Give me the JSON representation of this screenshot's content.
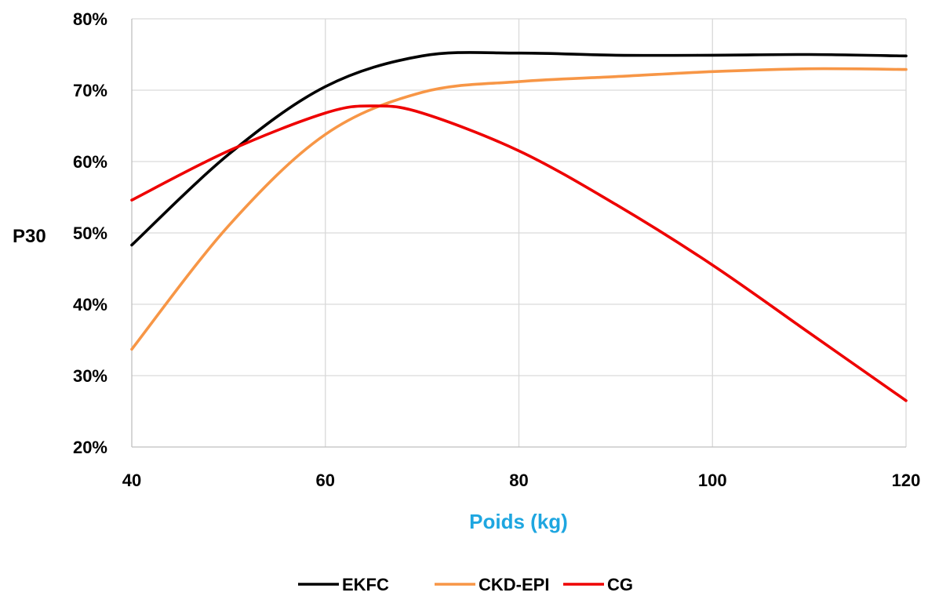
{
  "chart_data": {
    "type": "line",
    "title": "",
    "xlabel": "Poids (kg)",
    "ylabel": "P30",
    "xlim": [
      40,
      120
    ],
    "ylim": [
      20,
      80
    ],
    "x_ticks": [
      40,
      60,
      80,
      100,
      120
    ],
    "y_ticks": [
      20,
      30,
      40,
      50,
      60,
      70,
      80
    ],
    "x_tick_labels": [
      "40",
      "60",
      "80",
      "100",
      "120"
    ],
    "y_tick_labels": [
      "20%",
      "30%",
      "40%",
      "50%",
      "60%",
      "70%",
      "80%"
    ],
    "grid": true,
    "legend_position": "bottom",
    "colors": {
      "xlabel": "#1ea6e0",
      "grid": "#d9d9d9",
      "axis": "#bfbfbf"
    },
    "series": [
      {
        "name": "EKFC",
        "color": "#000000",
        "points": [
          [
            40,
            48.3
          ],
          [
            50,
            61.0
          ],
          [
            60,
            70.5
          ],
          [
            70,
            74.8
          ],
          [
            80,
            75.2
          ],
          [
            90,
            74.9
          ],
          [
            100,
            74.9
          ],
          [
            110,
            75.0
          ],
          [
            120,
            74.8
          ]
        ]
      },
      {
        "name": "CKD-EPI",
        "color": "#f79646",
        "points": [
          [
            40,
            33.7
          ],
          [
            50,
            51.0
          ],
          [
            60,
            63.8
          ],
          [
            70,
            69.7
          ],
          [
            80,
            71.2
          ],
          [
            90,
            71.9
          ],
          [
            100,
            72.6
          ],
          [
            110,
            73.0
          ],
          [
            120,
            72.9
          ]
        ]
      },
      {
        "name": "CG",
        "color": "#ee0000",
        "points": [
          [
            40,
            54.6
          ],
          [
            50,
            61.5
          ],
          [
            60,
            66.8
          ],
          [
            65,
            67.8
          ],
          [
            70,
            66.8
          ],
          [
            80,
            61.5
          ],
          [
            90,
            54.0
          ],
          [
            100,
            45.5
          ],
          [
            110,
            36.0
          ],
          [
            120,
            26.5
          ]
        ]
      }
    ]
  }
}
